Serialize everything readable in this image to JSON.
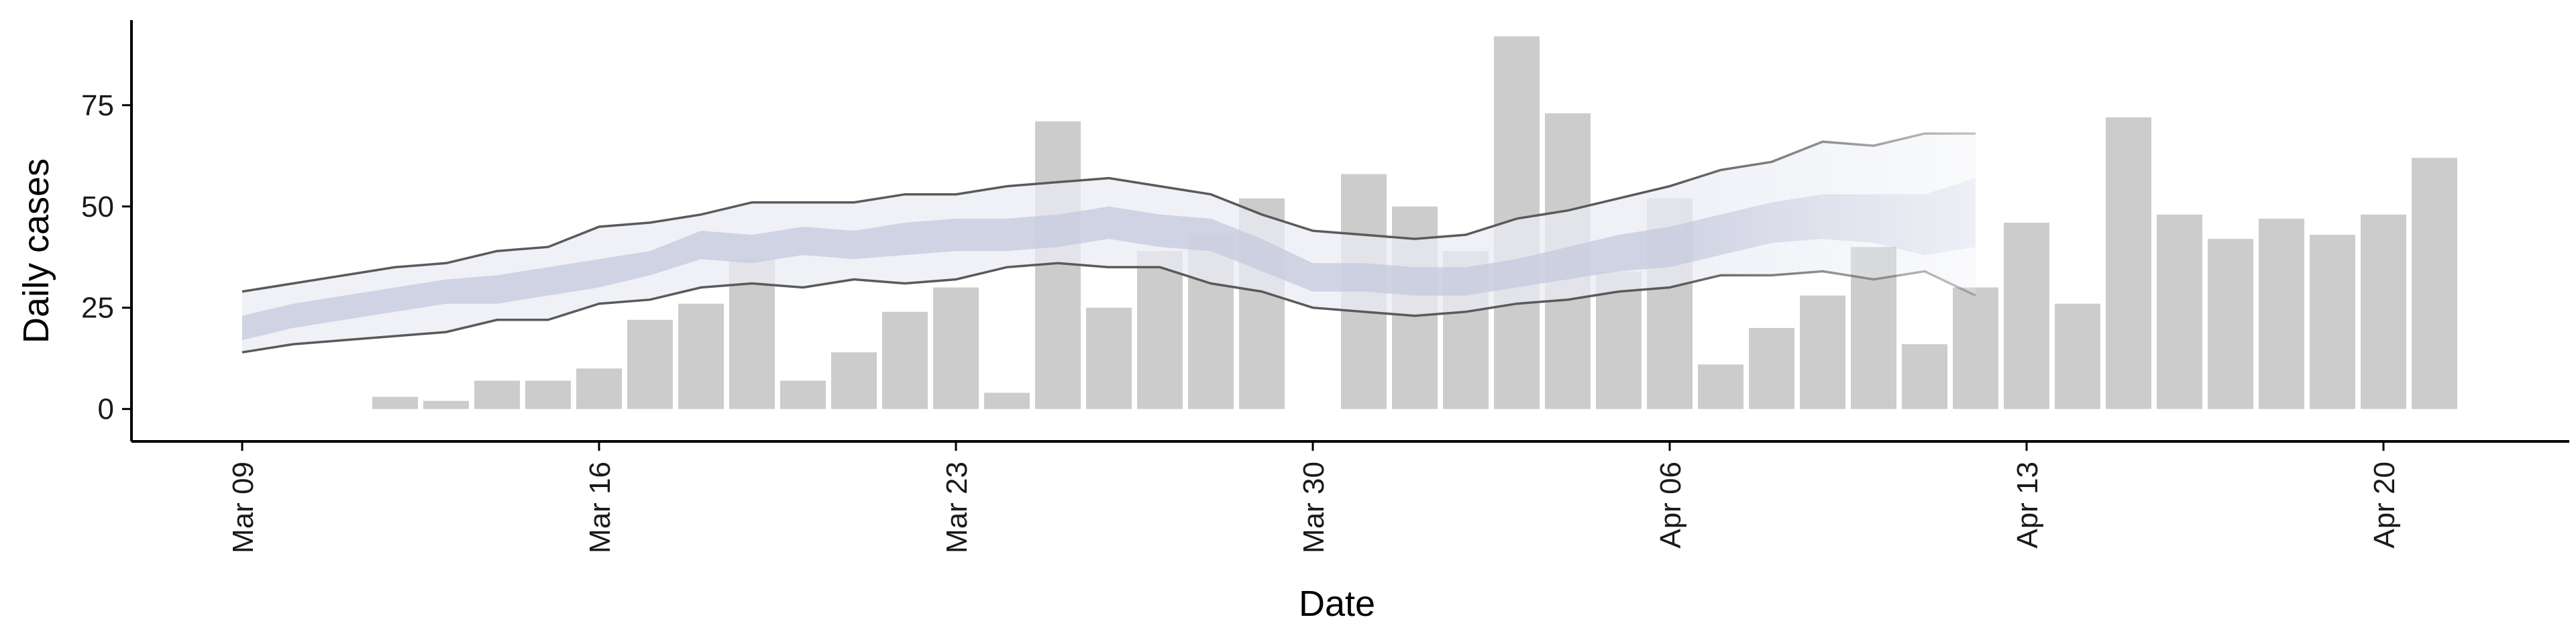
{
  "chart_data": {
    "type": "bar",
    "title": "",
    "xlabel": "Date",
    "ylabel": "Daily cases",
    "x_range": [
      "2020-03-09",
      "2020-04-23"
    ],
    "ylim": [
      -8,
      96
    ],
    "grid": false,
    "legend": "none",
    "x_ticks": [
      {
        "date": "2020-03-09",
        "label": "Mar 09"
      },
      {
        "date": "2020-03-16",
        "label": "Mar 16"
      },
      {
        "date": "2020-03-23",
        "label": "Mar 23"
      },
      {
        "date": "2020-03-30",
        "label": "Mar 30"
      },
      {
        "date": "2020-04-06",
        "label": "Apr 06"
      },
      {
        "date": "2020-04-13",
        "label": "Apr 13"
      },
      {
        "date": "2020-04-20",
        "label": "Apr 20"
      }
    ],
    "y_ticks": [
      0,
      25,
      50,
      75
    ],
    "daily_cases": [
      {
        "date": "2020-03-12",
        "value": 3
      },
      {
        "date": "2020-03-13",
        "value": 2
      },
      {
        "date": "2020-03-14",
        "value": 7
      },
      {
        "date": "2020-03-15",
        "value": 7
      },
      {
        "date": "2020-03-16",
        "value": 10
      },
      {
        "date": "2020-03-17",
        "value": 22
      },
      {
        "date": "2020-03-18",
        "value": 26
      },
      {
        "date": "2020-03-19",
        "value": 37
      },
      {
        "date": "2020-03-20",
        "value": 7
      },
      {
        "date": "2020-03-21",
        "value": 14
      },
      {
        "date": "2020-03-22",
        "value": 24
      },
      {
        "date": "2020-03-23",
        "value": 30
      },
      {
        "date": "2020-03-24",
        "value": 4
      },
      {
        "date": "2020-03-25",
        "value": 71
      },
      {
        "date": "2020-03-26",
        "value": 25
      },
      {
        "date": "2020-03-27",
        "value": 39
      },
      {
        "date": "2020-03-28",
        "value": 43
      },
      {
        "date": "2020-03-29",
        "value": 52
      },
      {
        "date": "2020-03-31",
        "value": 58
      },
      {
        "date": "2020-04-01",
        "value": 50
      },
      {
        "date": "2020-04-02",
        "value": 39
      },
      {
        "date": "2020-04-03",
        "value": 92
      },
      {
        "date": "2020-04-04",
        "value": 73
      },
      {
        "date": "2020-04-05",
        "value": 34
      },
      {
        "date": "2020-04-06",
        "value": 52
      },
      {
        "date": "2020-04-07",
        "value": 11
      },
      {
        "date": "2020-04-08",
        "value": 20
      },
      {
        "date": "2020-04-09",
        "value": 28
      },
      {
        "date": "2020-04-10",
        "value": 40
      },
      {
        "date": "2020-04-11",
        "value": 16
      },
      {
        "date": "2020-04-12",
        "value": 30
      },
      {
        "date": "2020-04-13",
        "value": 46
      },
      {
        "date": "2020-04-14",
        "value": 26
      },
      {
        "date": "2020-04-15",
        "value": 72
      },
      {
        "date": "2020-04-16",
        "value": 48
      },
      {
        "date": "2020-04-17",
        "value": 42
      },
      {
        "date": "2020-04-18",
        "value": 47
      },
      {
        "date": "2020-04-19",
        "value": 43
      },
      {
        "date": "2020-04-20",
        "value": 48
      },
      {
        "date": "2020-04-21",
        "value": 62
      }
    ],
    "estimate_band": {
      "dates": [
        "2020-03-09",
        "2020-03-10",
        "2020-03-11",
        "2020-03-12",
        "2020-03-13",
        "2020-03-14",
        "2020-03-15",
        "2020-03-16",
        "2020-03-17",
        "2020-03-18",
        "2020-03-19",
        "2020-03-20",
        "2020-03-21",
        "2020-03-22",
        "2020-03-23",
        "2020-03-24",
        "2020-03-25",
        "2020-03-26",
        "2020-03-27",
        "2020-03-28",
        "2020-03-29",
        "2020-03-30",
        "2020-03-31",
        "2020-04-01",
        "2020-04-02",
        "2020-04-03",
        "2020-04-04",
        "2020-04-05",
        "2020-04-06",
        "2020-04-07",
        "2020-04-08",
        "2020-04-09",
        "2020-04-10",
        "2020-04-11",
        "2020-04-12"
      ],
      "outer_lower": [
        14,
        16,
        17,
        18,
        19,
        22,
        22,
        26,
        27,
        30,
        31,
        30,
        32,
        31,
        32,
        35,
        36,
        35,
        35,
        31,
        29,
        25,
        24,
        23,
        24,
        26,
        27,
        29,
        30,
        33,
        33,
        34,
        32,
        34,
        28
      ],
      "outer_upper": [
        29,
        31,
        33,
        35,
        36,
        39,
        40,
        45,
        46,
        48,
        51,
        51,
        51,
        53,
        53,
        55,
        56,
        57,
        55,
        53,
        48,
        44,
        43,
        42,
        43,
        47,
        49,
        52,
        55,
        59,
        61,
        66,
        65,
        68,
        68
      ],
      "inner_lower": [
        17,
        20,
        22,
        24,
        26,
        26,
        28,
        30,
        33,
        37,
        36,
        38,
        37,
        38,
        39,
        39,
        40,
        42,
        40,
        39,
        34,
        29,
        29,
        28,
        28,
        30,
        32,
        34,
        35,
        38,
        41,
        42,
        41,
        38,
        40
      ],
      "inner_upper": [
        23,
        26,
        28,
        30,
        32,
        33,
        35,
        37,
        39,
        44,
        43,
        45,
        44,
        46,
        47,
        47,
        48,
        50,
        48,
        47,
        42,
        36,
        36,
        35,
        35,
        37,
        40,
        43,
        45,
        48,
        51,
        53,
        53,
        53,
        57
      ],
      "fade_from_date": "2020-04-06"
    },
    "colors": {
      "bars": "#cccccc",
      "outer_band": "#eaecf4",
      "inner_band": "#c5cade",
      "outline_line": "#5a5a5a",
      "axis": "#000000"
    }
  }
}
